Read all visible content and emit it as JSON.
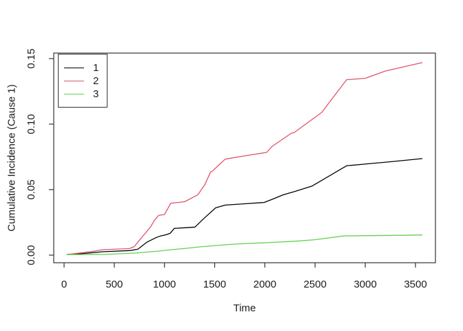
{
  "figure": {
    "background": "#ffffff"
  },
  "axis": {
    "xlabel": "Time",
    "ylabel": "Cumulative Incidence (Cause 1)"
  },
  "chart_data": {
    "type": "line",
    "title": "",
    "xlabel": "Time",
    "ylabel": "Cumulative Incidence (Cause 1)",
    "xlim": [
      -103,
      3699
    ],
    "ylim": [
      -0.0058,
      0.1542
    ],
    "grid": false,
    "legend_position": "topleft",
    "axis_color": "#333333",
    "tick_label_color": "#1a1a1a",
    "x_ticks": {
      "values": [
        0,
        500,
        1000,
        1500,
        2000,
        2500,
        3000,
        3500
      ],
      "labels": [
        "0",
        "500",
        "1000",
        "1500",
        "2000",
        "2500",
        "3000",
        "3500"
      ]
    },
    "y_ticks": {
      "values": [
        0,
        0.05,
        0.1,
        0.15
      ],
      "labels": [
        "0.00",
        "0.05",
        "0.10",
        "0.15"
      ]
    },
    "series": [
      {
        "name": "1",
        "color": "#000000",
        "points": [
          [
            30,
            0.0005
          ],
          [
            200,
            0.0013
          ],
          [
            391,
            0.0026
          ],
          [
            660,
            0.0035
          ],
          [
            735,
            0.0045
          ],
          [
            824,
            0.0099
          ],
          [
            920,
            0.0135
          ],
          [
            961,
            0.0146
          ],
          [
            1020,
            0.0157
          ],
          [
            1057,
            0.0167
          ],
          [
            1098,
            0.0204
          ],
          [
            1200,
            0.0209
          ],
          [
            1304,
            0.0214
          ],
          [
            1400,
            0.0285
          ],
          [
            1510,
            0.0361
          ],
          [
            1606,
            0.0382
          ],
          [
            1800,
            0.0392
          ],
          [
            1992,
            0.0402
          ],
          [
            2100,
            0.0434
          ],
          [
            2180,
            0.046
          ],
          [
            2299,
            0.0486
          ],
          [
            2471,
            0.0528
          ],
          [
            2814,
            0.0682
          ],
          [
            3001,
            0.0695
          ],
          [
            3300,
            0.0716
          ],
          [
            3565,
            0.0737
          ]
        ]
      },
      {
        "name": "2",
        "color": "#DF536B",
        "points": [
          [
            30,
            0.0005
          ],
          [
            200,
            0.002
          ],
          [
            391,
            0.0042
          ],
          [
            650,
            0.005
          ],
          [
            700,
            0.0065
          ],
          [
            734,
            0.0099
          ],
          [
            790,
            0.015
          ],
          [
            860,
            0.0214
          ],
          [
            900,
            0.0265
          ],
          [
            941,
            0.0303
          ],
          [
            1000,
            0.031
          ],
          [
            1064,
            0.0397
          ],
          [
            1150,
            0.0403
          ],
          [
            1201,
            0.0408
          ],
          [
            1331,
            0.046
          ],
          [
            1400,
            0.0535
          ],
          [
            1460,
            0.0635
          ],
          [
            1480,
            0.0643
          ],
          [
            1558,
            0.07
          ],
          [
            1606,
            0.0733
          ],
          [
            1800,
            0.0758
          ],
          [
            2018,
            0.0784
          ],
          [
            2073,
            0.0831
          ],
          [
            2265,
            0.0931
          ],
          [
            2293,
            0.0936
          ],
          [
            2567,
            0.109
          ],
          [
            2814,
            0.1339
          ],
          [
            3001,
            0.135
          ],
          [
            3200,
            0.1405
          ],
          [
            3565,
            0.1469
          ]
        ]
      },
      {
        "name": "3",
        "color": "#61D04F",
        "points": [
          [
            30,
            0.0004
          ],
          [
            391,
            0.0005
          ],
          [
            721,
            0.0016
          ],
          [
            940,
            0.0031
          ],
          [
            1078,
            0.0042
          ],
          [
            1215,
            0.0052
          ],
          [
            1380,
            0.0065
          ],
          [
            1510,
            0.0073
          ],
          [
            1660,
            0.0082
          ],
          [
            1784,
            0.0087
          ],
          [
            2000,
            0.0094
          ],
          [
            2313,
            0.0107
          ],
          [
            2500,
            0.0118
          ],
          [
            2780,
            0.0146
          ],
          [
            3001,
            0.0149
          ],
          [
            3300,
            0.0151
          ],
          [
            3565,
            0.0154
          ]
        ]
      }
    ]
  }
}
